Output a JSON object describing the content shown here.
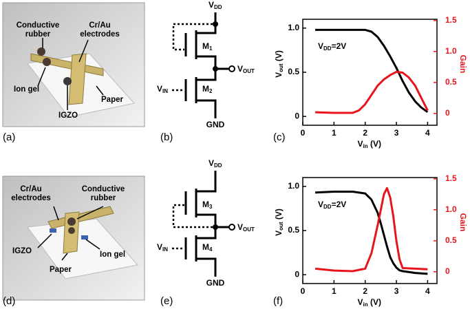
{
  "panel_labels": [
    "(a)",
    "(b)",
    "(c)",
    "(d)",
    "(e)",
    "(f)"
  ],
  "illustrations": [
    {
      "labels": [
        "Conductive",
        "rubber",
        "Cr/Au",
        "electrodes",
        "Ion gel",
        "IGZO",
        "Paper"
      ]
    },
    {
      "labels": [
        "Cr/Au",
        "electrodes",
        "Conductive",
        "rubber",
        "IGZO",
        "Paper",
        "Ion gel"
      ]
    }
  ],
  "circuits": [
    {
      "vdd": {
        "main": "V",
        "sub": "DD"
      },
      "vout": {
        "main": "V",
        "sub": "OUT"
      },
      "vin": {
        "main": "V",
        "sub": "IN"
      },
      "gnd": "GND",
      "m_top": {
        "main": "M",
        "sub": "1"
      },
      "m_bottom": {
        "main": "M",
        "sub": "2"
      }
    },
    {
      "vdd": {
        "main": "V",
        "sub": "DD"
      },
      "vout": {
        "main": "V",
        "sub": "OUT"
      },
      "vin": {
        "main": "V",
        "sub": "IN"
      },
      "gnd": "GND",
      "m_top": {
        "main": "M",
        "sub": "3"
      },
      "m_bottom": {
        "main": "M",
        "sub": "4"
      }
    }
  ],
  "chart_data": [
    {
      "type": "line",
      "xlabel": {
        "main": "V",
        "sub": "in",
        "tail": " (V)"
      },
      "ylabel": {
        "main": "V",
        "sub": "out",
        "tail": " (V)"
      },
      "y2label": "Gain",
      "annotation": {
        "main": "V",
        "sub": "DD",
        "tail": "=2V"
      },
      "x": [
        0.4,
        1.0,
        1.6,
        1.8,
        2.0,
        2.2,
        2.4,
        2.6,
        2.8,
        3.0,
        3.2,
        3.4,
        3.6,
        3.8,
        4.0
      ],
      "series": [
        {
          "color": "#000000",
          "values": [
            0.98,
            0.98,
            0.98,
            0.98,
            0.98,
            0.96,
            0.9,
            0.8,
            0.68,
            0.55,
            0.4,
            0.27,
            0.17,
            0.1,
            0.05
          ]
        },
        {
          "color": "#e8141c",
          "axis": "y2",
          "values": [
            0.02,
            0.01,
            0.01,
            0.05,
            0.15,
            0.3,
            0.45,
            0.55,
            0.62,
            0.67,
            0.66,
            0.58,
            0.45,
            0.25,
            0.05
          ]
        }
      ],
      "xlim": [
        0,
        4.3
      ],
      "xticks": [
        0,
        1,
        2,
        3,
        4
      ],
      "ylim": [
        -0.1,
        1.1
      ],
      "yticks": [
        0,
        0.5,
        {
          "value": 1,
          "label": "1.0"
        }
      ],
      "y2lim": [
        -0.19,
        1.52
      ],
      "y2ticks": [
        0,
        0.5,
        {
          "value": 1,
          "label": "1.0"
        },
        1.5
      ],
      "y2color": "#e8141c"
    },
    {
      "type": "line",
      "xlabel": {
        "main": "V",
        "sub": "in",
        "tail": " (V)"
      },
      "ylabel": {
        "main": "V",
        "sub": "out",
        "tail": " (V)"
      },
      "y2label": "Gain",
      "annotation": {
        "main": "V",
        "sub": "DD",
        "tail": "=2V"
      },
      "x": [
        0.4,
        1.0,
        1.6,
        2.0,
        2.2,
        2.4,
        2.5,
        2.6,
        2.7,
        2.8,
        2.9,
        3.0,
        3.1,
        3.2,
        3.6,
        4.0
      ],
      "series": [
        {
          "color": "#000000",
          "values": [
            0.93,
            0.94,
            0.94,
            0.92,
            0.85,
            0.7,
            0.58,
            0.45,
            0.32,
            0.2,
            0.13,
            0.08,
            0.05,
            0.04,
            0.02,
            0.01
          ]
        },
        {
          "color": "#e8141c",
          "axis": "y2",
          "values": [
            0.05,
            0.02,
            0.01,
            0.05,
            0.3,
            0.75,
            1.0,
            1.25,
            1.35,
            1.2,
            0.9,
            0.5,
            0.2,
            0.06,
            0.05,
            0.04
          ]
        }
      ],
      "xlim": [
        0,
        4.3
      ],
      "xticks": [
        0,
        1,
        2,
        3,
        4
      ],
      "ylim": [
        -0.1,
        1.1
      ],
      "yticks": [
        0,
        0.5,
        {
          "value": 1,
          "label": "1.0"
        }
      ],
      "y2lim": [
        -0.19,
        1.52
      ],
      "y2ticks": [
        0,
        0.5,
        {
          "value": 1,
          "label": "1.0"
        },
        1.5
      ],
      "y2color": "#e8141c"
    }
  ]
}
